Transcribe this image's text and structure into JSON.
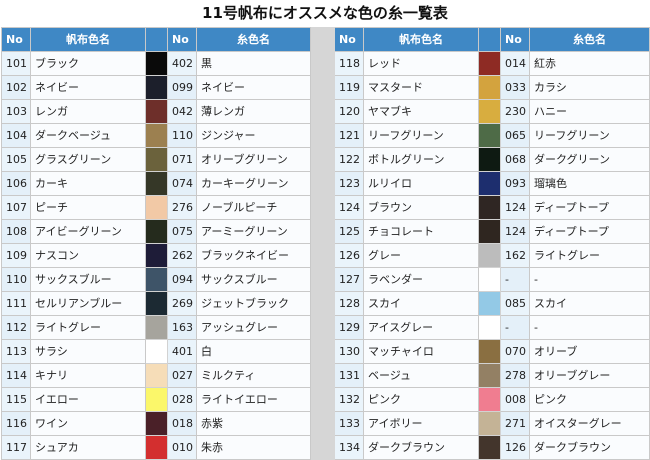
{
  "title": "11号帆布にオススメな色の糸一覧表",
  "headers": {
    "no": "No",
    "canvas_color": "帆布色名",
    "thread_no": "No",
    "thread_color": "糸色名"
  },
  "left": [
    {
      "no": "101",
      "canvas": "ブラック",
      "color": "#0a0a0a",
      "tno": "402",
      "thread": "黒"
    },
    {
      "no": "102",
      "canvas": "ネイビー",
      "color": "#1c1f2b",
      "tno": "099",
      "thread": "ネイビー"
    },
    {
      "no": "103",
      "canvas": "レンガ",
      "color": "#6e2f2a",
      "tno": "042",
      "thread": "薄レンガ"
    },
    {
      "no": "104",
      "canvas": "ダークベージュ",
      "color": "#9c8050",
      "tno": "110",
      "thread": "ジンジャー"
    },
    {
      "no": "105",
      "canvas": "グラスグリーン",
      "color": "#6b623c",
      "tno": "071",
      "thread": "オリーブグリーン"
    },
    {
      "no": "106",
      "canvas": "カーキ",
      "color": "#353727",
      "tno": "074",
      "thread": "カーキーグリーン"
    },
    {
      "no": "107",
      "canvas": "ピーチ",
      "color": "#f2c9a6",
      "tno": "276",
      "thread": "ノーブルピーチ"
    },
    {
      "no": "108",
      "canvas": "アイビーグリーン",
      "color": "#252b1d",
      "tno": "075",
      "thread": "アーミーグリーン"
    },
    {
      "no": "109",
      "canvas": "ナスコン",
      "color": "#1e1c38",
      "tno": "262",
      "thread": "ブラックネイビー"
    },
    {
      "no": "110",
      "canvas": "サックスブルー",
      "color": "#3e5468",
      "tno": "094",
      "thread": "サックスブルー"
    },
    {
      "no": "111",
      "canvas": "セルリアンブルー",
      "color": "#1c2a33",
      "tno": "269",
      "thread": "ジェットブラック"
    },
    {
      "no": "112",
      "canvas": "ライトグレー",
      "color": "#a6a49d",
      "tno": "163",
      "thread": "アッシュグレー"
    },
    {
      "no": "113",
      "canvas": "サラシ",
      "color": "#ffffff",
      "tno": "401",
      "thread": "白"
    },
    {
      "no": "114",
      "canvas": "キナリ",
      "color": "#f6ddb8",
      "tno": "027",
      "thread": "ミルクティ"
    },
    {
      "no": "115",
      "canvas": "イエロー",
      "color": "#fbf76a",
      "tno": "028",
      "thread": "ライトイエロー"
    },
    {
      "no": "116",
      "canvas": "ワイン",
      "color": "#4a2028",
      "tno": "018",
      "thread": "赤紫"
    },
    {
      "no": "117",
      "canvas": "シュアカ",
      "color": "#d32f2f",
      "tno": "010",
      "thread": "朱赤"
    }
  ],
  "right": [
    {
      "no": "118",
      "canvas": "レッド",
      "color": "#8e2b24",
      "tno": "014",
      "thread": "紅赤"
    },
    {
      "no": "119",
      "canvas": "マスタード",
      "color": "#d3a33e",
      "tno": "033",
      "thread": "カラシ"
    },
    {
      "no": "120",
      "canvas": "ヤマブキ",
      "color": "#d8ad3f",
      "tno": "230",
      "thread": "ハニー"
    },
    {
      "no": "121",
      "canvas": "リーフグリーン",
      "color": "#4e6b47",
      "tno": "065",
      "thread": "リーフグリーン"
    },
    {
      "no": "122",
      "canvas": "ボトルグリーン",
      "color": "#0e1a12",
      "tno": "068",
      "thread": "ダークグリーン"
    },
    {
      "no": "123",
      "canvas": "ルリイロ",
      "color": "#1d2e6e",
      "tno": "093",
      "thread": "瑠璃色"
    },
    {
      "no": "124",
      "canvas": "ブラウン",
      "color": "#2f2623",
      "tno": "124",
      "thread": "ディープトープ"
    },
    {
      "no": "125",
      "canvas": "チョコレート",
      "color": "#2f2620",
      "tno": "124",
      "thread": "ディープトープ"
    },
    {
      "no": "126",
      "canvas": "グレー",
      "color": "#bcbcbc",
      "tno": "162",
      "thread": "ライトグレー"
    },
    {
      "no": "127",
      "canvas": "ラベンダー",
      "color": "#ffffff",
      "tno": "-",
      "thread": "-"
    },
    {
      "no": "128",
      "canvas": "スカイ",
      "color": "#93c9e6",
      "tno": "085",
      "thread": "スカイ"
    },
    {
      "no": "129",
      "canvas": "アイスグレー",
      "color": "#ffffff",
      "tno": "-",
      "thread": "-"
    },
    {
      "no": "130",
      "canvas": "マッチャイロ",
      "color": "#8a6f41",
      "tno": "070",
      "thread": "オリーブ"
    },
    {
      "no": "131",
      "canvas": "ベージュ",
      "color": "#938064",
      "tno": "278",
      "thread": "オリーブグレー"
    },
    {
      "no": "132",
      "canvas": "ピンク",
      "color": "#f07d90",
      "tno": "008",
      "thread": "ピンク"
    },
    {
      "no": "133",
      "canvas": "アイボリー",
      "color": "#c4b396",
      "tno": "271",
      "thread": "オイスターグレー"
    },
    {
      "no": "134",
      "canvas": "ダークブラウン",
      "color": "#43352c",
      "tno": "126",
      "thread": "ダークブラウン"
    }
  ]
}
